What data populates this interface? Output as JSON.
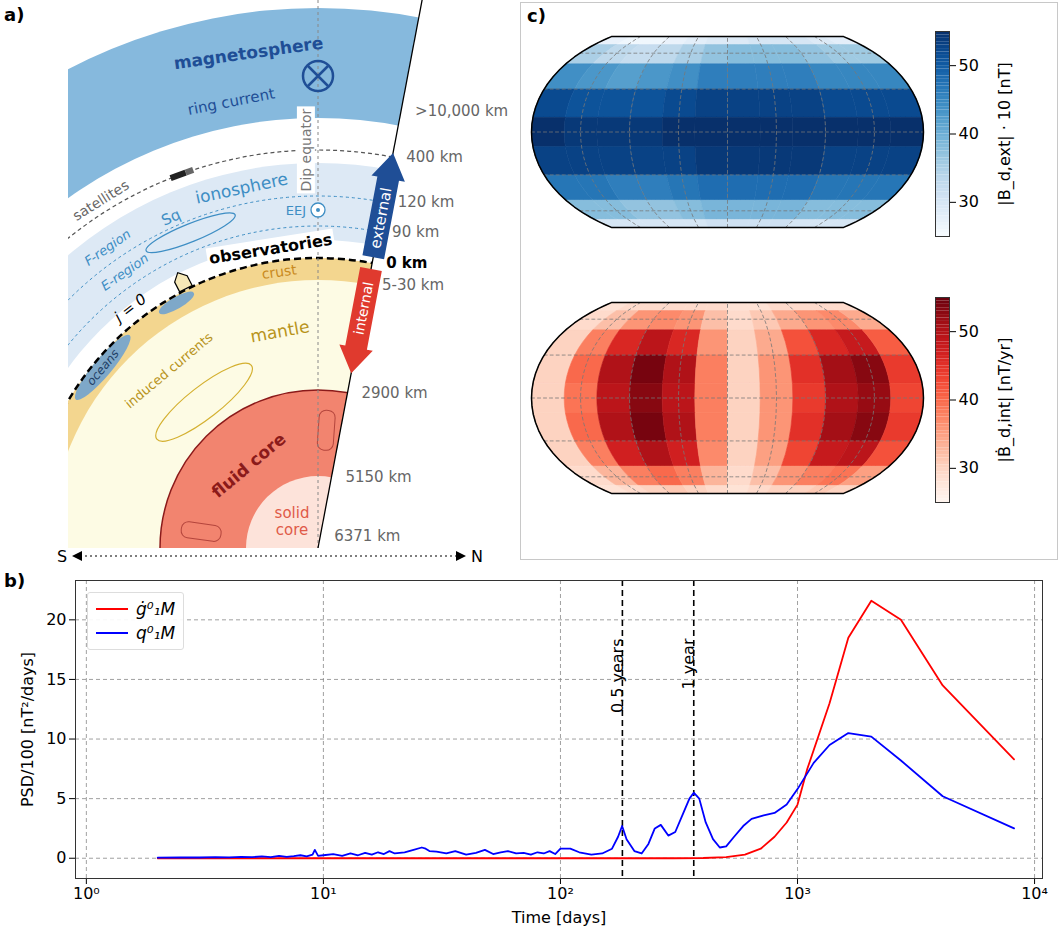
{
  "diagram": {
    "panel_label": "a)",
    "labels": {
      "magnetosphere": "magnetosphere",
      "ring_current": "ring current",
      "dip_equator": "Dip equator",
      "satellites": "satellites",
      "ionosphere": "ionosphere",
      "f_region": "F-region",
      "e_region": "E-region",
      "sq": "Sq",
      "eej": "EEJ",
      "observatories": "observatories",
      "j0": "j = 0",
      "crust": "crust",
      "oceans": "oceans",
      "induced_currents": "induced currents",
      "mantle": "mantle",
      "fluid_core": "fluid core",
      "solid_core": "solid core",
      "external": "external",
      "internal": "internal"
    },
    "altitudes": [
      ">10,000 km",
      "400 km",
      "120 km",
      "90 km",
      "0 km",
      "5-30 km",
      "2900 km",
      "5150 km",
      "6371 km"
    ],
    "direction": {
      "left": "S",
      "right": "N"
    }
  },
  "chart_data": [
    {
      "type": "line",
      "panel_label": "b)",
      "x_label": "Time [days]",
      "y_label": "PSD/100 [nT²/days]",
      "log": "x",
      "grid": true,
      "legend": "top-left",
      "xlim": [
        0.9,
        10800
      ],
      "xticks": [
        {
          "value": 1,
          "label": "10⁰"
        },
        {
          "value": 10,
          "label": "10¹"
        },
        {
          "value": 100,
          "label": "10²"
        },
        {
          "value": 1000,
          "label": "10³"
        },
        {
          "value": 10000,
          "label": "10⁴"
        }
      ],
      "ylim": [
        -1.7,
        23.3
      ],
      "yticks": [
        0,
        5,
        10,
        15,
        20
      ],
      "annotations": [
        {
          "x": 182.5,
          "label": "0.5 years",
          "line_style": "dashed"
        },
        {
          "x": 365,
          "label": "1 year",
          "line_style": "dashed"
        }
      ],
      "series": [
        {
          "name": "ġ⁰₁M",
          "color": "red",
          "x": [
            2,
            5,
            10,
            20,
            50,
            100,
            200,
            300,
            400,
            500,
            600,
            700,
            800,
            900,
            1000,
            1100,
            1365,
            1638,
            2048,
            2730,
            4096,
            8192
          ],
          "values": [
            0,
            0,
            0,
            0,
            0,
            0,
            0,
            0,
            0.02,
            0.1,
            0.3,
            0.8,
            1.8,
            3,
            4.5,
            7.5,
            13,
            18.5,
            21.6,
            20,
            14.5,
            8.3
          ]
        },
        {
          "name": "q⁰₁M",
          "color": "blue",
          "x": [
            2,
            2.5,
            3,
            3.5,
            4,
            4.5,
            5,
            5.5,
            6,
            6.5,
            7,
            7.5,
            8,
            8.5,
            9,
            9.2,
            9.5,
            10,
            11,
            12,
            13,
            14,
            15,
            16,
            17,
            18,
            19,
            20,
            22,
            24,
            26,
            27,
            28,
            30,
            33,
            36,
            40,
            44,
            48,
            52,
            56,
            60,
            65,
            70,
            75,
            80,
            85,
            90,
            95,
            100,
            110,
            120,
            135,
            150,
            165,
            175,
            182,
            190,
            205,
            220,
            235,
            250,
            265,
            285,
            305,
            330,
            350,
            365,
            385,
            410,
            440,
            470,
            500,
            540,
            590,
            640,
            720,
            800,
            900,
            1000,
            1170,
            1365,
            1638,
            2048,
            2730,
            4096,
            8192
          ],
          "values": [
            0.05,
            0.08,
            0.06,
            0.1,
            0.07,
            0.12,
            0.09,
            0.15,
            0.1,
            0.2,
            0.12,
            0.18,
            0.25,
            0.15,
            0.3,
            0.7,
            0.2,
            0.25,
            0.35,
            0.2,
            0.4,
            0.25,
            0.45,
            0.3,
            0.5,
            0.35,
            0.6,
            0.4,
            0.5,
            0.7,
            0.9,
            0.8,
            0.6,
            0.55,
            0.4,
            0.6,
            0.3,
            0.45,
            0.7,
            0.35,
            0.5,
            0.6,
            0.4,
            0.45,
            0.3,
            0.5,
            0.4,
            0.6,
            0.35,
            0.8,
            0.8,
            0.5,
            0.3,
            0.4,
            0.8,
            1.8,
            2.7,
            1.6,
            0.6,
            0.4,
            1.2,
            2.5,
            2.8,
            1.9,
            2.2,
            3.8,
            5,
            5.5,
            5,
            3,
            1.6,
            0.9,
            1,
            1.8,
            2.7,
            3.3,
            3.6,
            3.8,
            4.5,
            5.8,
            8,
            9.5,
            10.5,
            10.2,
            8.2,
            5.2,
            2.5
          ]
        }
      ]
    },
    {
      "type": "map",
      "panel_label": "c)",
      "color": "blues",
      "colorbar_label": "|B_d,ext| · 10 [nT]",
      "colorbar_range": [
        25,
        55
      ],
      "colorbar_ticks": [
        30,
        40,
        50
      ],
      "lons": [
        -180,
        -150,
        -120,
        -90,
        -60,
        -30,
        0,
        30,
        60,
        90,
        120,
        150,
        180
      ],
      "lats": [
        90,
        70,
        50,
        30,
        10,
        -10,
        -30,
        -50,
        -70,
        -90
      ],
      "cells": [
        [
          27,
          26,
          26,
          27,
          28,
          29,
          29,
          30,
          30,
          30,
          29,
          28
        ],
        [
          35,
          33,
          32,
          33,
          35,
          37,
          38,
          38,
          38,
          37,
          36,
          36
        ],
        [
          44,
          43,
          42,
          43,
          44,
          46,
          46,
          46,
          46,
          45,
          45,
          45
        ],
        [
          52,
          51,
          51,
          51,
          52,
          53,
          53,
          53,
          53,
          52,
          52,
          52
        ],
        [
          55,
          54,
          54,
          54,
          55,
          55,
          55,
          55,
          55,
          55,
          55,
          55
        ],
        [
          53,
          53,
          53,
          53,
          53,
          54,
          54,
          54,
          54,
          53,
          53,
          53
        ],
        [
          47,
          47,
          46,
          46,
          47,
          48,
          48,
          48,
          48,
          47,
          47,
          47
        ],
        [
          38,
          38,
          37,
          37,
          38,
          39,
          39,
          39,
          39,
          38,
          38,
          38
        ],
        [
          30,
          30,
          30,
          30,
          30,
          31,
          31,
          31,
          31,
          30,
          30,
          30
        ]
      ]
    },
    {
      "type": "map",
      "color": "reds",
      "colorbar_label": "|Ḃ_d,int| [nT/yr]",
      "colorbar_range": [
        25,
        55
      ],
      "colorbar_ticks": [
        30,
        40,
        50
      ],
      "lons": [
        -180,
        -150,
        -120,
        -90,
        -60,
        -30,
        0,
        30,
        60,
        90,
        120,
        150,
        180
      ],
      "lats": [
        90,
        70,
        50,
        30,
        10,
        -10,
        -30,
        -50,
        -70,
        -90
      ],
      "cells": [
        [
          28,
          29,
          29,
          29,
          29,
          29,
          28,
          28,
          29,
          29,
          29,
          29
        ],
        [
          29,
          32,
          36,
          37,
          36,
          32,
          29,
          31,
          34,
          36,
          37,
          34
        ],
        [
          30,
          38,
          46,
          49,
          46,
          36,
          30,
          34,
          42,
          46,
          48,
          41
        ],
        [
          30,
          40,
          50,
          54,
          50,
          38,
          30,
          36,
          45,
          51,
          53,
          44
        ],
        [
          30,
          39,
          49,
          53,
          49,
          38,
          30,
          36,
          44,
          50,
          52,
          43
        ],
        [
          30,
          40,
          50,
          54,
          50,
          38,
          30,
          36,
          45,
          51,
          53,
          44
        ],
        [
          30,
          38,
          47,
          50,
          47,
          37,
          30,
          35,
          43,
          48,
          49,
          42
        ],
        [
          29,
          33,
          38,
          40,
          38,
          33,
          29,
          32,
          36,
          38,
          39,
          35
        ],
        [
          28,
          29,
          30,
          31,
          30,
          29,
          28,
          29,
          30,
          30,
          31,
          30
        ]
      ]
    }
  ]
}
